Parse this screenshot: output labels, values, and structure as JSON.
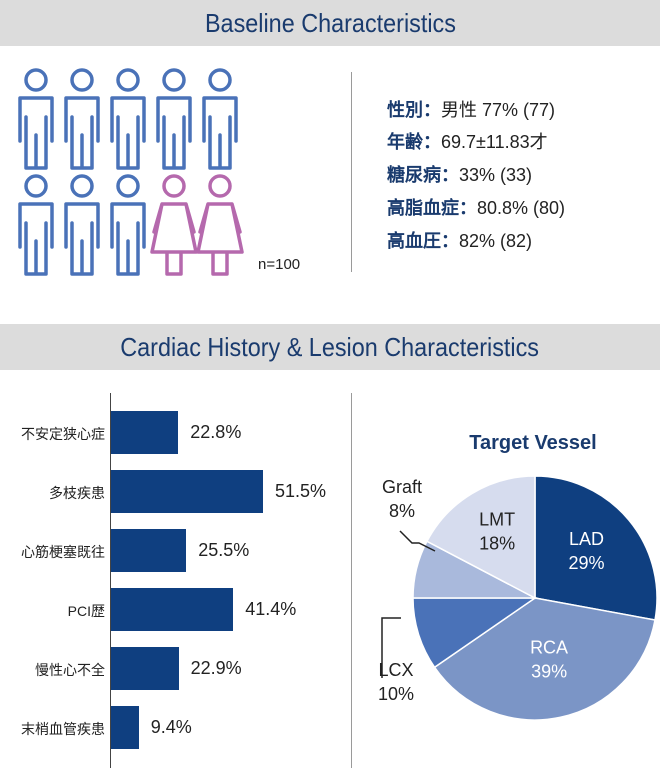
{
  "baseline": {
    "title": "Baseline Characteristics",
    "n_label": "n=100",
    "figures": {
      "male": 8,
      "female": 2,
      "male_color": "#4a72b8",
      "female_color": "#b569ad"
    },
    "stats": [
      {
        "label": "性別",
        "value": "男性 77% (77)"
      },
      {
        "label": "年齢",
        "value": "69.7±11.83才"
      },
      {
        "label": "糖尿病",
        "value": "33% (33)"
      },
      {
        "label": "高脂血症",
        "value": "80.8% (80)"
      },
      {
        "label": "高血圧",
        "value": "82% (82)"
      }
    ]
  },
  "history": {
    "title": "Cardiac History & Lesion Characteristics"
  },
  "chart_data": [
    {
      "type": "bar",
      "orientation": "horizontal",
      "categories": [
        "不安定狭心症",
        "多枝疾患",
        "心筋梗塞既往",
        "PCI歴",
        "慢性心不全",
        "末梢血管疾患"
      ],
      "values": [
        22.8,
        51.5,
        25.5,
        41.4,
        22.9,
        9.4
      ],
      "value_labels": [
        "22.8%",
        "51.5%",
        "25.5%",
        "41.4%",
        "22.9%",
        "9.4%"
      ],
      "unit": "%",
      "xlim": [
        0,
        100
      ],
      "bar_color": "#0f3f80"
    },
    {
      "type": "pie",
      "title": "Target Vessel",
      "slices": [
        {
          "name": "LAD",
          "value": 29,
          "label": "29%",
          "color": "#0f3f80"
        },
        {
          "name": "RCA",
          "value": 39,
          "label": "39%",
          "color": "#7b95c6"
        },
        {
          "name": "LCX",
          "value": 10,
          "label": "10%",
          "color": "#4a72b8"
        },
        {
          "name": "Graft",
          "value": 8,
          "label": "8%",
          "color": "#a9b9dc"
        },
        {
          "name": "LMT",
          "value": 18,
          "label": "18%",
          "color": "#d6dcee"
        }
      ]
    }
  ]
}
